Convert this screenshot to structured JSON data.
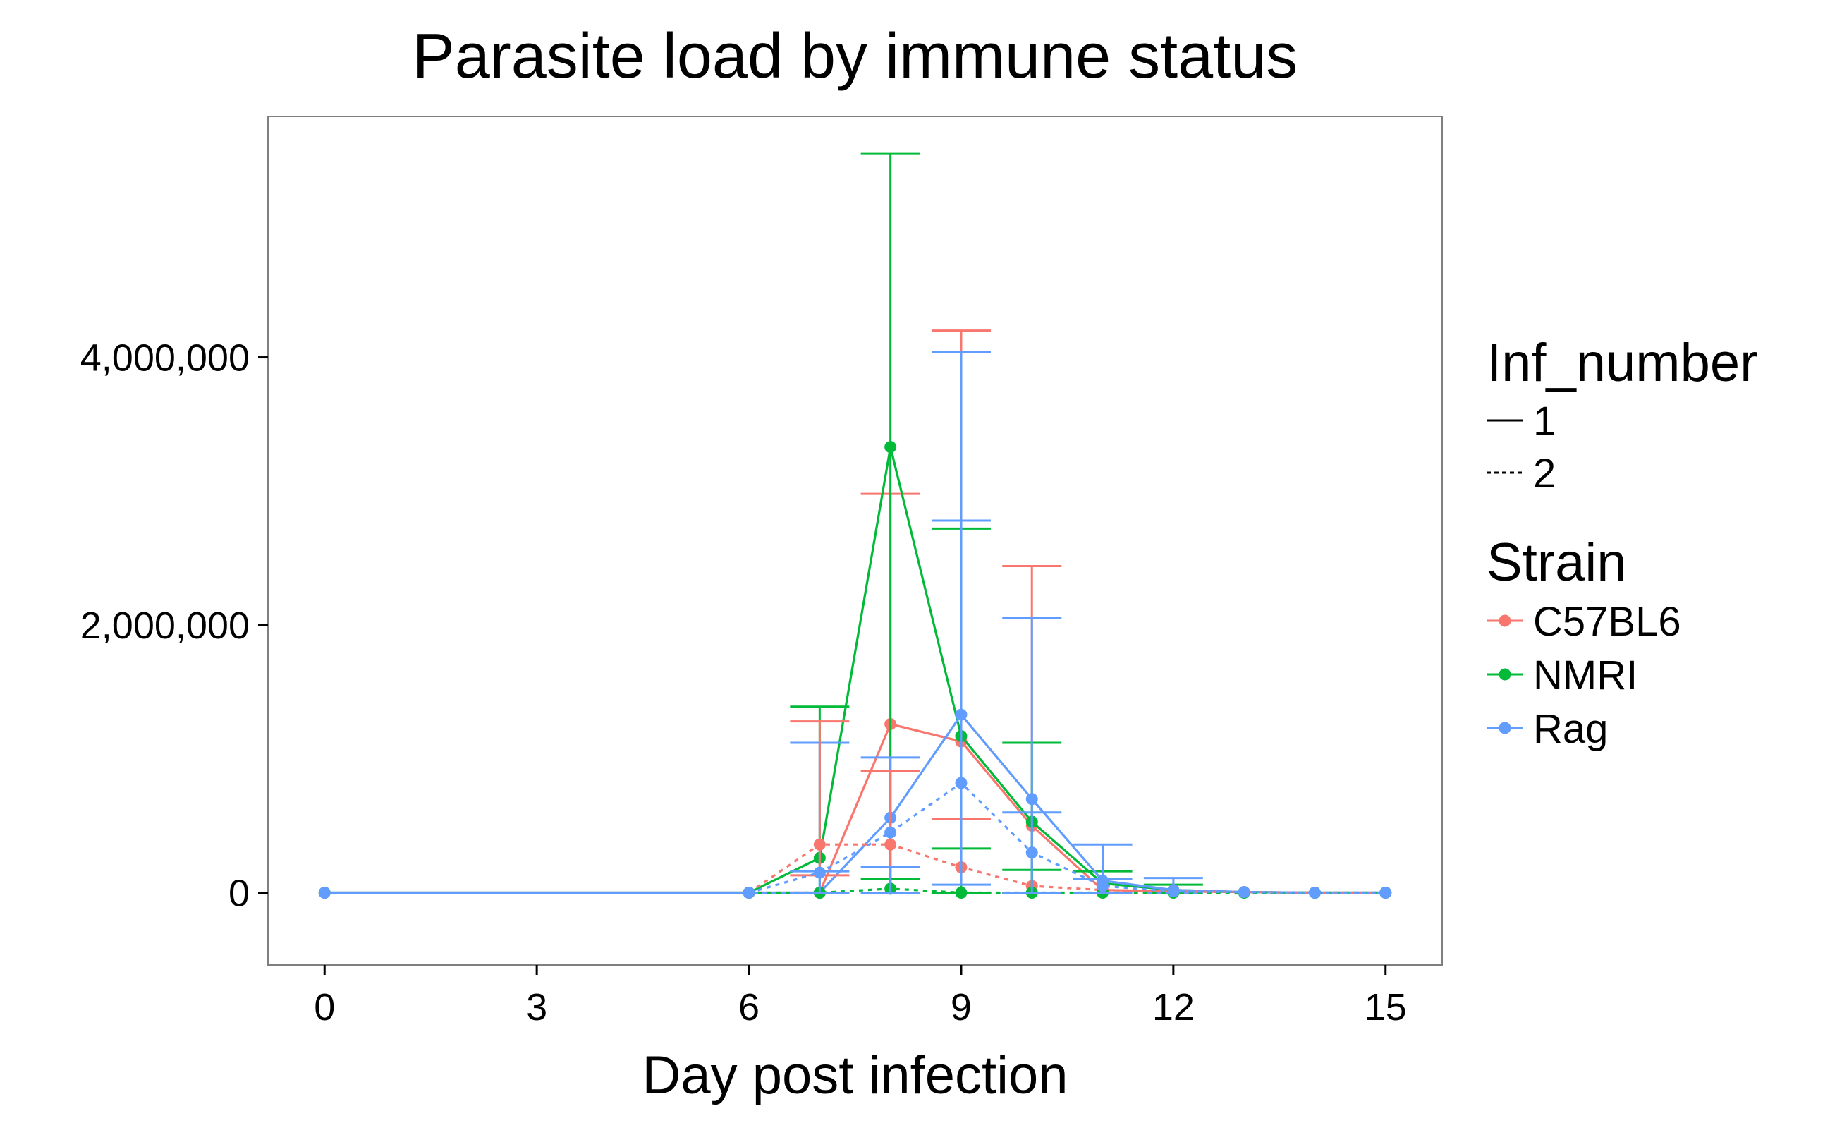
{
  "chart_data": {
    "type": "line",
    "title": "Parasite load by immune status",
    "xlabel": "Day post infection",
    "ylabel": "",
    "xlim": [
      -0.8,
      15.8
    ],
    "ylim": [
      -540000,
      5800000
    ],
    "x_ticks": [
      {
        "value": 0,
        "label": "0"
      },
      {
        "value": 3,
        "label": "3"
      },
      {
        "value": 6,
        "label": "6"
      },
      {
        "value": 9,
        "label": "9"
      },
      {
        "value": 12,
        "label": "12"
      },
      {
        "value": 15,
        "label": "15"
      }
    ],
    "y_ticks": [
      {
        "value": 0,
        "label": "0"
      },
      {
        "value": 2000000,
        "label": "2,000,000"
      },
      {
        "value": 4000000,
        "label": "4,000,000"
      }
    ],
    "grid": false,
    "error_bars": true,
    "legend_position": "right",
    "legends": {
      "linetype": {
        "title": "Inf_number",
        "items": [
          {
            "label": "1",
            "dash": "solid"
          },
          {
            "label": "2",
            "dash": "dotted"
          }
        ]
      },
      "color": {
        "title": "Strain",
        "items": [
          {
            "label": "C57BL6",
            "color": "#F8766D"
          },
          {
            "label": "NMRI",
            "color": "#00BA38"
          },
          {
            "label": "Rag",
            "color": "#619CFF"
          }
        ]
      }
    },
    "series": [
      {
        "strain": "C57BL6",
        "inf_number": "1",
        "color": "#F8766D",
        "dash": "solid",
        "x": [
          0,
          6,
          7,
          8,
          9,
          10,
          11,
          12,
          13,
          14,
          15
        ],
        "y": [
          0,
          0,
          0,
          1260000,
          1130000,
          500000,
          20000,
          10000,
          5000,
          0,
          0
        ],
        "err_low": [
          0,
          0,
          0,
          0,
          0,
          0,
          0,
          0,
          0,
          0,
          0
        ],
        "err_high": [
          0,
          0,
          0,
          2980000,
          4200000,
          2440000,
          0,
          0,
          0,
          0,
          0
        ]
      },
      {
        "strain": "NMRI",
        "inf_number": "1",
        "color": "#00BA38",
        "dash": "solid",
        "x": [
          0,
          6,
          7,
          8,
          9,
          10,
          11,
          12,
          13,
          14,
          15
        ],
        "y": [
          0,
          0,
          260000,
          3330000,
          1170000,
          530000,
          70000,
          20000,
          5000,
          0,
          0
        ],
        "err_low": [
          0,
          0,
          0,
          0,
          0,
          0,
          0,
          0,
          0,
          0,
          0
        ],
        "err_high": [
          0,
          0,
          1390000,
          5520000,
          2720000,
          1120000,
          160000,
          60000,
          0,
          0,
          0
        ]
      },
      {
        "strain": "Rag",
        "inf_number": "1",
        "color": "#619CFF",
        "dash": "solid",
        "x": [
          0,
          6,
          7,
          8,
          9,
          10,
          11,
          12,
          13,
          14,
          15
        ],
        "y": [
          0,
          0,
          0,
          560000,
          1330000,
          700000,
          90000,
          20000,
          5000,
          0,
          0
        ],
        "err_low": [
          0,
          0,
          0,
          0,
          0,
          0,
          0,
          0,
          0,
          0,
          0
        ],
        "err_high": [
          0,
          0,
          1120000,
          1010000,
          4040000,
          2050000,
          360000,
          110000,
          0,
          0,
          0
        ]
      },
      {
        "strain": "C57BL6",
        "inf_number": "2",
        "color": "#F8766D",
        "dash": "dotted",
        "x": [
          6,
          7,
          8,
          9,
          10,
          11,
          12,
          13,
          14,
          15
        ],
        "y": [
          0,
          360000,
          360000,
          190000,
          50000,
          20000,
          10000,
          5000,
          0,
          0
        ],
        "err_low": [
          0,
          130000,
          0,
          0,
          0,
          0,
          0,
          0,
          0,
          0
        ],
        "err_high": [
          0,
          1280000,
          910000,
          550000,
          0,
          0,
          0,
          0,
          0,
          0
        ]
      },
      {
        "strain": "NMRI",
        "inf_number": "2",
        "color": "#00BA38",
        "dash": "dotted",
        "x": [
          6,
          7,
          8,
          9,
          10,
          11,
          12,
          13,
          14,
          15
        ],
        "y": [
          0,
          0,
          30000,
          0,
          0,
          0,
          0,
          0,
          0,
          0
        ],
        "err_low": [
          0,
          0,
          0,
          0,
          0,
          0,
          0,
          0,
          0,
          0
        ],
        "err_high": [
          0,
          0,
          100000,
          330000,
          170000,
          0,
          0,
          0,
          0,
          0
        ]
      },
      {
        "strain": "Rag",
        "inf_number": "2",
        "color": "#619CFF",
        "dash": "dotted",
        "x": [
          6,
          7,
          8,
          9,
          10,
          11,
          12,
          13,
          14,
          15
        ],
        "y": [
          0,
          150000,
          450000,
          820000,
          300000,
          50000,
          10000,
          5000,
          0,
          0
        ],
        "err_low": [
          0,
          0,
          0,
          60000,
          0,
          0,
          0,
          0,
          0,
          0
        ],
        "err_high": [
          0,
          160000,
          190000,
          2780000,
          600000,
          100000,
          0,
          0,
          0,
          0
        ]
      }
    ]
  }
}
